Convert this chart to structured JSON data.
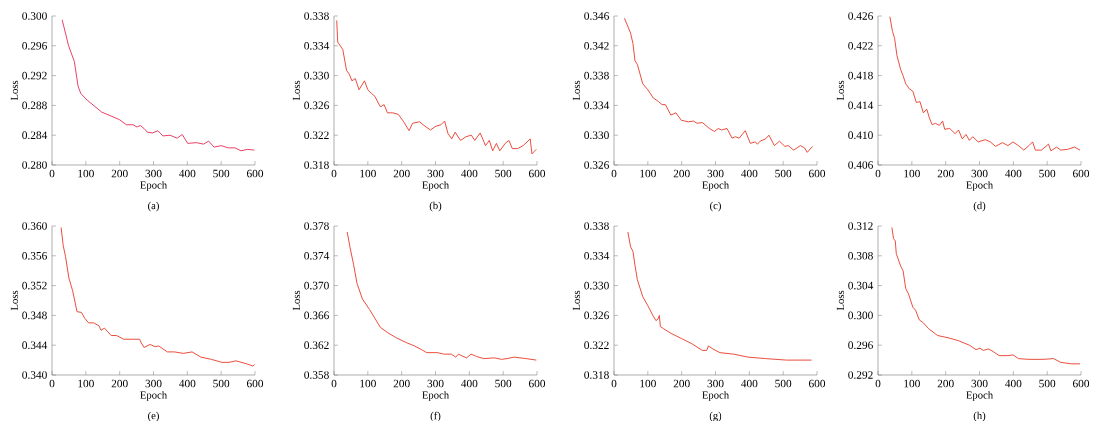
{
  "chart_data": [
    {
      "type": "line",
      "xlabel": "Epoch",
      "ylabel": "Loss",
      "annotations": [
        "(a)"
      ],
      "xlim": [
        0,
        600
      ],
      "ylim": [
        0.28,
        0.3
      ],
      "xticks": [
        0,
        100,
        200,
        300,
        400,
        500,
        600
      ],
      "yticks": [
        {
          "value": 0.28,
          "label": "0.280"
        },
        0.284,
        0.288,
        0.292,
        0.296,
        {
          "value": 0.3,
          "label": "0.300"
        }
      ],
      "series": [
        {
          "color": "#e8335a",
          "x": [
            30,
            49,
            66,
            77,
            85,
            104,
            147,
            199,
            220,
            240,
            251,
            261,
            272,
            282,
            297,
            313,
            328,
            349,
            370,
            385,
            401,
            427,
            448,
            463,
            479,
            500,
            521,
            541,
            559,
            577,
            598
          ],
          "values": [
            0.2995,
            0.296,
            0.2939,
            0.2906,
            0.2896,
            0.2887,
            0.2871,
            0.2861,
            0.2854,
            0.2854,
            0.2851,
            0.2853,
            0.2849,
            0.2844,
            0.2843,
            0.2846,
            0.2839,
            0.284,
            0.2836,
            0.2841,
            0.2829,
            0.283,
            0.2828,
            0.2832,
            0.2824,
            0.2826,
            0.2823,
            0.2823,
            0.2819,
            0.2821,
            0.282
          ]
        }
      ]
    },
    {
      "type": "line",
      "xlabel": "Epoch",
      "ylabel": "Loss",
      "annotations": [
        "(b)"
      ],
      "xlim": [
        0,
        600
      ],
      "ylim": [
        0.318,
        0.338
      ],
      "xticks": [
        0,
        100,
        200,
        300,
        400,
        500,
        600
      ],
      "yticks": [
        0.318,
        0.322,
        0.326,
        {
          "value": 0.33,
          "label": "0.330"
        },
        0.334,
        0.338
      ],
      "series": [
        {
          "color": "#e8412f",
          "x": [
            8,
            11,
            26,
            37,
            45,
            53,
            63,
            74,
            90,
            100,
            111,
            121,
            137,
            148,
            158,
            174,
            190,
            206,
            222,
            232,
            253,
            269,
            285,
            301,
            316,
            327,
            337,
            348,
            358,
            374,
            390,
            406,
            416,
            432,
            448,
            459,
            469,
            480,
            490,
            506,
            517,
            527,
            543,
            559,
            580,
            585,
            598
          ],
          "values": [
            0.3374,
            0.3345,
            0.3335,
            0.3307,
            0.3302,
            0.3293,
            0.3296,
            0.3281,
            0.3293,
            0.3281,
            0.3276,
            0.3272,
            0.3258,
            0.3261,
            0.325,
            0.325,
            0.3248,
            0.3238,
            0.3226,
            0.3236,
            0.3238,
            0.3232,
            0.3227,
            0.3232,
            0.3234,
            0.3239,
            0.3222,
            0.3215,
            0.3224,
            0.3213,
            0.3218,
            0.322,
            0.3213,
            0.3223,
            0.3206,
            0.3213,
            0.3199,
            0.3209,
            0.3199,
            0.3209,
            0.3213,
            0.3202,
            0.3202,
            0.3206,
            0.3215,
            0.3195,
            0.3201
          ]
        }
      ]
    },
    {
      "type": "line",
      "xlabel": "Epoch",
      "ylabel": "Loss",
      "annotations": [
        "(c)"
      ],
      "xlim": [
        0,
        600
      ],
      "ylim": [
        0.326,
        0.346
      ],
      "xticks": [
        0,
        100,
        200,
        300,
        400,
        500,
        600
      ],
      "yticks": [
        0.326,
        {
          "value": 0.33,
          "label": "0.330"
        },
        0.334,
        0.338,
        0.342,
        0.346
      ],
      "series": [
        {
          "color": "#e8412f",
          "x": [
            31,
            49,
            56,
            62,
            69,
            85,
            100,
            116,
            132,
            142,
            152,
            168,
            183,
            199,
            220,
            235,
            245,
            261,
            282,
            297,
            308,
            318,
            334,
            349,
            359,
            370,
            388,
            403,
            417,
            424,
            432,
            448,
            458,
            474,
            489,
            505,
            515,
            531,
            551,
            563,
            571,
            587
          ],
          "values": [
            0.3457,
            0.3437,
            0.3423,
            0.34,
            0.3395,
            0.3369,
            0.3361,
            0.335,
            0.3345,
            0.3341,
            0.3341,
            0.3327,
            0.333,
            0.332,
            0.3318,
            0.3319,
            0.3316,
            0.3317,
            0.3309,
            0.3305,
            0.3309,
            0.3307,
            0.3309,
            0.3296,
            0.3298,
            0.3296,
            0.3306,
            0.3289,
            0.3291,
            0.3288,
            0.3292,
            0.3295,
            0.33,
            0.3286,
            0.3292,
            0.3285,
            0.3286,
            0.328,
            0.3286,
            0.3283,
            0.3277,
            0.3285
          ]
        }
      ]
    },
    {
      "type": "line",
      "xlabel": "Epoch",
      "ylabel": "Loss",
      "annotations": [
        "(d)"
      ],
      "xlim": [
        0,
        600
      ],
      "ylim": [
        0.406,
        0.426
      ],
      "xticks": [
        0,
        100,
        200,
        300,
        400,
        500,
        600
      ],
      "yticks": [
        0.406,
        {
          "value": 0.41,
          "label": "0.410"
        },
        0.414,
        0.418,
        0.422,
        0.426
      ],
      "series": [
        {
          "color": "#e8412f",
          "x": [
            35,
            43,
            49,
            56,
            67,
            74,
            82,
            93,
            103,
            113,
            124,
            134,
            144,
            152,
            160,
            170,
            181,
            191,
            197,
            212,
            228,
            238,
            249,
            260,
            270,
            280,
            296,
            317,
            332,
            347,
            368,
            384,
            399,
            415,
            431,
            446,
            457,
            465,
            483,
            504,
            511,
            528,
            540,
            560,
            581,
            597
          ],
          "values": [
            0.4259,
            0.4239,
            0.423,
            0.4207,
            0.4188,
            0.418,
            0.4169,
            0.4162,
            0.4159,
            0.4144,
            0.4145,
            0.413,
            0.4135,
            0.4123,
            0.4114,
            0.4116,
            0.4113,
            0.4119,
            0.4108,
            0.4109,
            0.4102,
            0.4107,
            0.4095,
            0.4101,
            0.4093,
            0.4098,
            0.4091,
            0.4094,
            0.4091,
            0.4085,
            0.409,
            0.4086,
            0.4091,
            0.4086,
            0.408,
            0.4086,
            0.4091,
            0.408,
            0.408,
            0.4088,
            0.4079,
            0.4084,
            0.408,
            0.4081,
            0.4084,
            0.408
          ]
        }
      ]
    },
    {
      "type": "line",
      "xlabel": "Epoch",
      "ylabel": "Loss",
      "annotations": [
        "(e)"
      ],
      "xlim": [
        0,
        600
      ],
      "ylim": [
        0.34,
        0.36
      ],
      "xticks": [
        0,
        100,
        200,
        300,
        400,
        500,
        600
      ],
      "yticks": [
        {
          "value": 0.34,
          "label": "0.340"
        },
        0.344,
        0.348,
        0.352,
        0.356,
        {
          "value": 0.36,
          "label": "0.360"
        }
      ],
      "series": [
        {
          "color": "#e8412f",
          "x": [
            27,
            33,
            40,
            50,
            61,
            74,
            87,
            97,
            108,
            123,
            139,
            145,
            155,
            165,
            175,
            191,
            212,
            243,
            259,
            264,
            272,
            290,
            305,
            315,
            341,
            362,
            388,
            414,
            440,
            471,
            502,
            523,
            544,
            575,
            594,
            599
          ],
          "values": [
            0.3598,
            0.3574,
            0.3559,
            0.353,
            0.3513,
            0.3485,
            0.3484,
            0.3476,
            0.347,
            0.347,
            0.3466,
            0.346,
            0.3463,
            0.3458,
            0.3453,
            0.3453,
            0.3448,
            0.3448,
            0.3448,
            0.3443,
            0.3437,
            0.3441,
            0.3438,
            0.3439,
            0.3431,
            0.3431,
            0.3429,
            0.3431,
            0.3424,
            0.3421,
            0.3417,
            0.3417,
            0.3419,
            0.3415,
            0.3412,
            0.3414
          ]
        }
      ]
    },
    {
      "type": "line",
      "xlabel": "Epoch",
      "ylabel": "Loss",
      "annotations": [
        "(f)"
      ],
      "xlim": [
        0,
        600
      ],
      "ylim": [
        0.358,
        0.378
      ],
      "xticks": [
        0,
        100,
        200,
        300,
        400,
        500,
        600
      ],
      "yticks": [
        0.358,
        0.362,
        0.366,
        {
          "value": 0.37,
          "label": "0.370"
        },
        0.374,
        0.378
      ],
      "series": [
        {
          "color": "#e8412f",
          "x": [
            39,
            47,
            58,
            68,
            84,
            105,
            121,
            137,
            158,
            184,
            211,
            238,
            259,
            274,
            305,
            326,
            347,
            360,
            368,
            381,
            392,
            405,
            421,
            442,
            474,
            495,
            511,
            532,
            568,
            598
          ],
          "values": [
            0.3772,
            0.3752,
            0.3728,
            0.3703,
            0.3682,
            0.3668,
            0.3656,
            0.3644,
            0.3637,
            0.363,
            0.3624,
            0.3619,
            0.3614,
            0.361,
            0.361,
            0.3608,
            0.3608,
            0.3604,
            0.3608,
            0.3605,
            0.3603,
            0.3608,
            0.3605,
            0.3602,
            0.3603,
            0.3601,
            0.3602,
            0.3604,
            0.3602,
            0.36
          ]
        }
      ]
    },
    {
      "type": "line",
      "xlabel": "Epoch",
      "ylabel": "Loss",
      "annotations": [
        "(g)"
      ],
      "xlim": [
        0,
        600
      ],
      "ylim": [
        0.318,
        0.338
      ],
      "xticks": [
        0,
        100,
        200,
        300,
        400,
        500,
        600
      ],
      "yticks": [
        0.318,
        0.322,
        0.326,
        {
          "value": 0.33,
          "label": "0.330"
        },
        0.334,
        0.338
      ],
      "series": [
        {
          "color": "#e8412f",
          "x": [
            41,
            49,
            56,
            62,
            69,
            85,
            100,
            116,
            124,
            130,
            134,
            137,
            147,
            168,
            199,
            230,
            261,
            274,
            279,
            292,
            313,
            354,
            396,
            448,
            510,
            584
          ],
          "values": [
            0.3372,
            0.3352,
            0.3346,
            0.3327,
            0.3308,
            0.3285,
            0.3273,
            0.3259,
            0.3253,
            0.3255,
            0.326,
            0.3245,
            0.3242,
            0.3236,
            0.3229,
            0.3222,
            0.3213,
            0.3213,
            0.3219,
            0.3215,
            0.321,
            0.3208,
            0.3204,
            0.3202,
            0.32,
            0.32
          ]
        }
      ]
    },
    {
      "type": "line",
      "xlabel": "Epoch",
      "ylabel": "Loss",
      "annotations": [
        "(h)"
      ],
      "xlim": [
        0,
        600
      ],
      "ylim": [
        0.292,
        0.312
      ],
      "xticks": [
        0,
        100,
        200,
        300,
        400,
        500,
        600
      ],
      "yticks": [
        0.292,
        0.296,
        {
          "value": 0.3,
          "label": "0.300"
        },
        0.304,
        0.308,
        0.312
      ],
      "series": [
        {
          "color": "#e8412f",
          "x": [
            41,
            46,
            51,
            54,
            67,
            74,
            82,
            90,
            103,
            111,
            122,
            134,
            150,
            176,
            207,
            238,
            270,
            290,
            301,
            311,
            327,
            342,
            358,
            384,
            399,
            415,
            446,
            488,
            519,
            540,
            571,
            597
          ],
          "values": [
            0.3118,
            0.3103,
            0.31,
            0.3083,
            0.3066,
            0.306,
            0.3036,
            0.3029,
            0.3011,
            0.3007,
            0.2994,
            0.299,
            0.2982,
            0.2973,
            0.297,
            0.2966,
            0.296,
            0.2954,
            0.2956,
            0.2953,
            0.2955,
            0.2951,
            0.2946,
            0.2946,
            0.2947,
            0.2942,
            0.2941,
            0.2941,
            0.2942,
            0.2937,
            0.2935,
            0.2935
          ]
        }
      ]
    }
  ]
}
